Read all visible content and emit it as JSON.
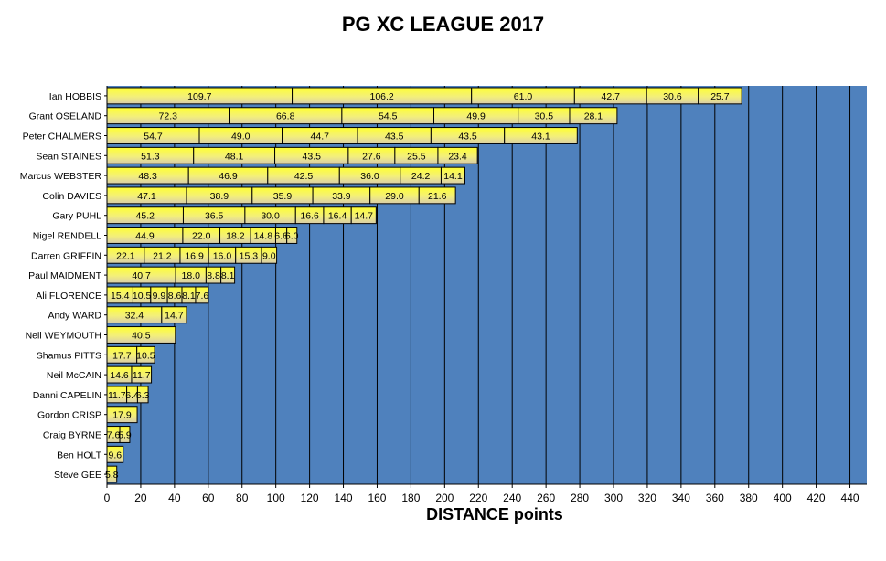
{
  "chart_data": {
    "type": "bar",
    "orientation": "horizontal",
    "stacked": true,
    "title": "PG XC LEAGUE 2017",
    "xlabel": "DISTANCE points",
    "ylabel": "",
    "xlim": [
      0,
      450
    ],
    "xticks": [
      0,
      20,
      40,
      60,
      80,
      100,
      120,
      140,
      160,
      180,
      200,
      220,
      240,
      260,
      280,
      300,
      320,
      340,
      360,
      380,
      400,
      420,
      440
    ],
    "grid": true,
    "colors": {
      "plot_background": "#4f81bd",
      "bar_fill_light": "#ffff33",
      "bar_fill_dark": "#ddd2a8",
      "bar_border": "#000000"
    },
    "rows": [
      {
        "pilot": "Ian HOBBIS",
        "values": [
          109.7,
          106.2,
          61.0,
          42.7,
          30.6,
          25.7
        ]
      },
      {
        "pilot": "Grant OSELAND",
        "values": [
          72.3,
          66.8,
          54.5,
          49.9,
          30.5,
          28.1
        ]
      },
      {
        "pilot": "Peter CHALMERS",
        "values": [
          54.7,
          49.0,
          44.7,
          43.5,
          43.5,
          43.1
        ]
      },
      {
        "pilot": "Sean STAINES",
        "values": [
          51.3,
          48.1,
          43.5,
          27.6,
          25.5,
          23.4
        ]
      },
      {
        "pilot": "Marcus WEBSTER",
        "values": [
          48.3,
          46.9,
          42.5,
          36.0,
          24.2,
          14.1
        ]
      },
      {
        "pilot": "Colin DAVIES",
        "values": [
          47.1,
          38.9,
          35.9,
          33.9,
          29.0,
          21.6
        ]
      },
      {
        "pilot": "Gary PUHL",
        "values": [
          45.2,
          36.5,
          30.0,
          16.6,
          16.4,
          14.7
        ]
      },
      {
        "pilot": "Nigel RENDELL",
        "values": [
          44.9,
          22.0,
          18.2,
          14.8,
          6.6,
          6.0
        ]
      },
      {
        "pilot": "Darren GRIFFIN",
        "values": [
          22.1,
          21.2,
          16.9,
          16.0,
          15.3,
          9.0
        ]
      },
      {
        "pilot": "Paul MAIDMENT",
        "values": [
          40.7,
          18.0,
          8.8,
          8.1
        ]
      },
      {
        "pilot": "Ali FLORENCE",
        "values": [
          15.4,
          10.5,
          9.9,
          8.6,
          8.1,
          7.6
        ]
      },
      {
        "pilot": "Andy WARD",
        "values": [
          32.4,
          14.7
        ]
      },
      {
        "pilot": "Neil WEYMOUTH",
        "values": [
          40.5
        ]
      },
      {
        "pilot": "Shamus PITTS",
        "values": [
          17.7,
          10.5
        ]
      },
      {
        "pilot": "Neil McCAIN",
        "values": [
          14.6,
          11.7
        ]
      },
      {
        "pilot": "Danni CAPELIN",
        "values": [
          11.7,
          6.4,
          6.3
        ]
      },
      {
        "pilot": "Gordon CRISP",
        "values": [
          17.9
        ]
      },
      {
        "pilot": "Craig BYRNE",
        "values": [
          7.6,
          5.9
        ]
      },
      {
        "pilot": "Ben HOLT",
        "values": [
          9.6
        ]
      },
      {
        "pilot": "Steve GEE",
        "values": [
          5.8
        ]
      }
    ]
  }
}
